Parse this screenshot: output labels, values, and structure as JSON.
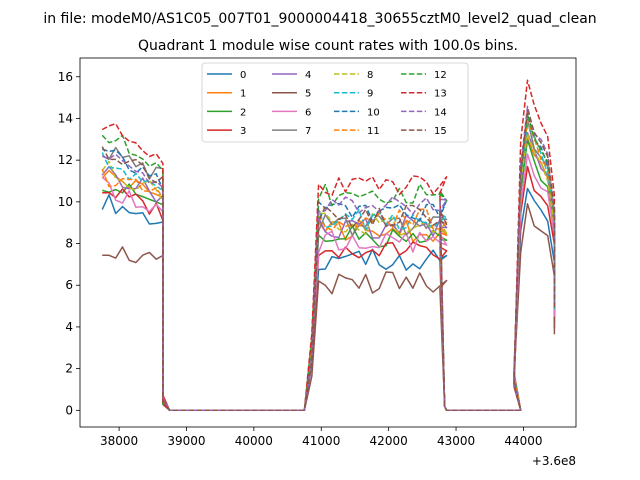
{
  "chart_data": {
    "type": "line",
    "suptitle": "in file: modeM0/AS1C05_007T01_9000004418_30655cztM0_level2_quad_clean",
    "title": "Quadrant 1 module wise count rates with 100.0s bins.",
    "xlabel": "",
    "ylabel": "",
    "x_offset_label": "+3.6e8",
    "xlim": [
      37420,
      44780
    ],
    "ylim": [
      -0.8,
      16.9
    ],
    "xticks": [
      38000,
      39000,
      40000,
      41000,
      42000,
      43000,
      44000
    ],
    "yticks": [
      0,
      2,
      4,
      6,
      8,
      10,
      12,
      14,
      16
    ],
    "legend": {
      "position": "top-center",
      "columns": 4
    },
    "segments": [
      {
        "start": 37750,
        "bins": 10,
        "step": 100
      },
      {
        "start": 38750,
        "bins": 21,
        "step": 100
      },
      {
        "start": 40760,
        "bins": 20,
        "step": 100
      },
      {
        "start": 42860,
        "bins": 12,
        "step": 100
      },
      {
        "start": 43960,
        "bins": 6,
        "step": 100
      }
    ],
    "gaps": [
      {
        "start": 38650,
        "value": 0.5
      },
      {
        "start": 42760,
        "value": 5.5
      },
      {
        "start": 43860,
        "value": 1.5
      }
    ],
    "series": [
      {
        "name": "0",
        "color": "#1f77b4",
        "dash": "solid",
        "levels": [
          9.0,
          7.2,
          10.2
        ]
      },
      {
        "name": "1",
        "color": "#ff7f0e",
        "dash": "solid",
        "levels": [
          10.2,
          8.6,
          12.7
        ]
      },
      {
        "name": "2",
        "color": "#2ca02c",
        "dash": "solid",
        "levels": [
          9.8,
          8.3,
          12.1
        ]
      },
      {
        "name": "3",
        "color": "#d62728",
        "dash": "solid",
        "levels": [
          9.5,
          7.8,
          11.0
        ]
      },
      {
        "name": "4",
        "color": "#9467bd",
        "dash": "solid",
        "levels": [
          10.3,
          8.8,
          12.6
        ]
      },
      {
        "name": "5",
        "color": "#8c564b",
        "dash": "solid",
        "levels": [
          7.0,
          6.1,
          9.2
        ]
      },
      {
        "name": "6",
        "color": "#e377c2",
        "dash": "solid",
        "levels": [
          9.6,
          8.1,
          11.6
        ]
      },
      {
        "name": "7",
        "color": "#7f7f7f",
        "dash": "solid",
        "levels": [
          11.2,
          8.9,
          13.0
        ]
      },
      {
        "name": "8",
        "color": "#bcbd22",
        "dash": "dashed",
        "levels": [
          10.4,
          8.9,
          12.8
        ]
      },
      {
        "name": "9",
        "color": "#17becf",
        "dash": "dashed",
        "levels": [
          10.7,
          9.2,
          13.2
        ]
      },
      {
        "name": "10",
        "color": "#1f77b4",
        "dash": "dashed",
        "levels": [
          11.0,
          9.6,
          13.4
        ]
      },
      {
        "name": "11",
        "color": "#ff7f0e",
        "dash": "dashed",
        "levels": [
          10.1,
          9.1,
          13.1
        ]
      },
      {
        "name": "12",
        "color": "#2ca02c",
        "dash": "dashed",
        "levels": [
          11.8,
          10.3,
          13.6
        ]
      },
      {
        "name": "13",
        "color": "#d62728",
        "dash": "dashed",
        "levels": [
          12.2,
          10.8,
          15.0
        ]
      },
      {
        "name": "14",
        "color": "#9467bd",
        "dash": "dashed",
        "levels": [
          10.9,
          9.9,
          13.7
        ]
      },
      {
        "name": "15",
        "color": "#8c564b",
        "dash": "dashed",
        "levels": [
          11.2,
          9.3,
          13.5
        ]
      }
    ]
  }
}
